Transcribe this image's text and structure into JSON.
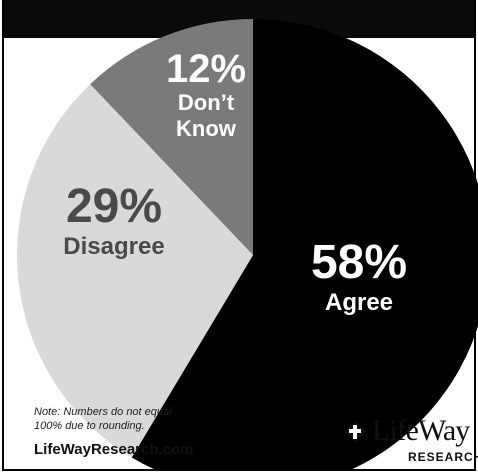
{
  "header": {
    "title_partial": ""
  },
  "chart_data": {
    "type": "pie",
    "slices": [
      {
        "label": "Agree",
        "value": 58,
        "display": "58%",
        "color": "#000000",
        "text_color": "#ffffff"
      },
      {
        "label": "Disagree",
        "value": 29,
        "display": "29%",
        "color": "#d9d9d9",
        "text_color": "#4a4a4a"
      },
      {
        "label": "Don’t Know",
        "value": 12,
        "display": "12%",
        "color": "#7a7a7a",
        "text_color": "#ffffff"
      }
    ],
    "note": "Note: Numbers do not equal 100% due to rounding."
  },
  "footer": {
    "website": "LifeWayResearch.com",
    "logo_text": "LifeWay",
    "logo_subtext": "RESEARCH"
  }
}
